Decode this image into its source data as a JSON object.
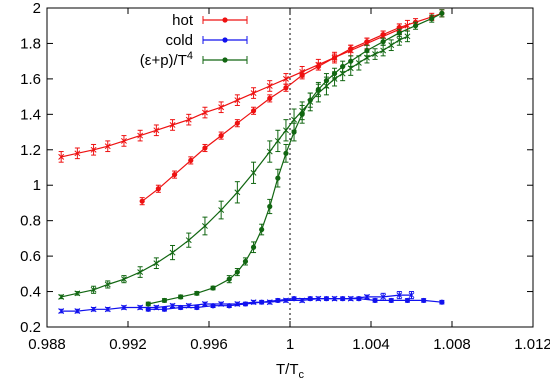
{
  "chart_data": {
    "type": "line",
    "xlabel": "T/T",
    "xlabel_subscript": "c",
    "ylabel": "",
    "xlim": [
      0.988,
      1.012
    ],
    "ylim": [
      0.2,
      2.0
    ],
    "xticks": [
      0.988,
      0.992,
      0.996,
      1.0,
      1.004,
      1.008,
      1.012
    ],
    "xtick_labels": [
      "0.988",
      "0.992",
      "0.996",
      "1",
      "1.004",
      "1.008",
      "1.012"
    ],
    "yticks": [
      0.2,
      0.4,
      0.6,
      0.8,
      1.0,
      1.2,
      1.4,
      1.6,
      1.8,
      2.0
    ],
    "ytick_labels": [
      "0.2",
      "0.4",
      "0.6",
      "0.8",
      "1",
      "1.2",
      "1.4",
      "1.6",
      "1.8",
      "2"
    ],
    "reference_line_x": 1.0,
    "legend": {
      "placement": "top-right",
      "entries": [
        {
          "label": "hot",
          "color": "#ee1111"
        },
        {
          "label": "cold",
          "color": "#1111ee"
        },
        {
          "label": "(ε+p)/T⁴",
          "label_base": "(ε+p)/T",
          "label_sup": "4",
          "color": "#116611"
        }
      ]
    },
    "series": [
      {
        "name": "hot",
        "color": "#ee1111",
        "marker": "dot",
        "x": [
          0.9927,
          0.9935,
          0.9943,
          0.9951,
          0.9958,
          0.9966,
          0.9974,
          0.9982,
          0.999,
          0.9998,
          1.0006,
          1.0014,
          1.0022,
          1.003,
          1.0038,
          1.0046,
          1.0054,
          1.0062,
          1.007,
          1.0075
        ],
        "y": [
          0.91,
          0.98,
          1.06,
          1.14,
          1.21,
          1.28,
          1.35,
          1.42,
          1.49,
          1.55,
          1.62,
          1.67,
          1.72,
          1.77,
          1.81,
          1.85,
          1.89,
          1.92,
          1.95,
          1.97
        ],
        "err": [
          0.02,
          0.02,
          0.02,
          0.02,
          0.02,
          0.02,
          0.02,
          0.02,
          0.02,
          0.02,
          0.02,
          0.02,
          0.02,
          0.02,
          0.02,
          0.02,
          0.02,
          0.02,
          0.02,
          0.02
        ]
      },
      {
        "name": "",
        "color": "#ee1111",
        "marker": "x",
        "x": [
          0.9887,
          0.9895,
          0.9903,
          0.991,
          0.9918,
          0.9926,
          0.9934,
          0.9942,
          0.995,
          0.9958,
          0.9966,
          0.9974,
          0.9982,
          0.999,
          0.9998,
          1.0006,
          1.0014,
          1.0022,
          1.003,
          1.0038,
          1.0046,
          1.0054,
          1.0058
        ],
        "y": [
          1.16,
          1.18,
          1.2,
          1.22,
          1.25,
          1.28,
          1.31,
          1.34,
          1.37,
          1.41,
          1.44,
          1.48,
          1.52,
          1.56,
          1.6,
          1.64,
          1.68,
          1.72,
          1.76,
          1.8,
          1.84,
          1.88,
          1.9
        ],
        "err": [
          0.03,
          0.03,
          0.03,
          0.03,
          0.03,
          0.03,
          0.03,
          0.03,
          0.03,
          0.03,
          0.03,
          0.03,
          0.03,
          0.03,
          0.03,
          0.03,
          0.03,
          0.03,
          0.03,
          0.03,
          0.03,
          0.03,
          0.03
        ]
      },
      {
        "name": "cold",
        "color": "#1111ee",
        "marker": "dot",
        "x": [
          0.993,
          0.9938,
          0.9946,
          0.9954,
          0.9962,
          0.997,
          0.9978,
          0.9986,
          0.9994,
          1.0002,
          1.001,
          1.0018,
          1.0026,
          1.0034,
          1.0042,
          1.005,
          1.0058,
          1.0066,
          1.0075
        ],
        "y": [
          0.3,
          0.3,
          0.31,
          0.31,
          0.32,
          0.32,
          0.33,
          0.34,
          0.35,
          0.36,
          0.36,
          0.36,
          0.36,
          0.36,
          0.35,
          0.35,
          0.35,
          0.35,
          0.34
        ],
        "err": [
          0.01,
          0.01,
          0.01,
          0.01,
          0.01,
          0.01,
          0.01,
          0.01,
          0.01,
          0.01,
          0.01,
          0.01,
          0.01,
          0.01,
          0.01,
          0.01,
          0.01,
          0.01,
          0.01
        ]
      },
      {
        "name": "",
        "color": "#1111ee",
        "marker": "x",
        "x": [
          0.9887,
          0.9895,
          0.9903,
          0.991,
          0.9918,
          0.9926,
          0.9934,
          0.9942,
          0.995,
          0.9958,
          0.9966,
          0.9974,
          0.9982,
          0.999,
          0.9998,
          1.0006,
          1.0014,
          1.0022,
          1.003,
          1.0038,
          1.0046,
          1.0054,
          1.006
        ],
        "y": [
          0.29,
          0.29,
          0.3,
          0.3,
          0.31,
          0.31,
          0.31,
          0.32,
          0.32,
          0.33,
          0.33,
          0.33,
          0.34,
          0.34,
          0.35,
          0.35,
          0.36,
          0.36,
          0.36,
          0.37,
          0.37,
          0.38,
          0.38
        ],
        "err": [
          0.01,
          0.01,
          0.01,
          0.01,
          0.01,
          0.01,
          0.01,
          0.01,
          0.01,
          0.01,
          0.01,
          0.01,
          0.01,
          0.01,
          0.01,
          0.01,
          0.01,
          0.01,
          0.01,
          0.01,
          0.02,
          0.02,
          0.02
        ]
      },
      {
        "name": "(ε+p)/T⁴",
        "color": "#116611",
        "marker": "dot",
        "x": [
          0.993,
          0.9938,
          0.9946,
          0.9954,
          0.9962,
          0.997,
          0.9974,
          0.9978,
          0.9982,
          0.9986,
          0.999,
          0.9994,
          0.9998,
          1.0002,
          1.0006,
          1.001,
          1.0014,
          1.0018,
          1.0022,
          1.0026,
          1.003,
          1.0038,
          1.0046,
          1.0054,
          1.0062,
          1.007,
          1.0075
        ],
        "y": [
          0.33,
          0.35,
          0.37,
          0.39,
          0.42,
          0.47,
          0.51,
          0.57,
          0.65,
          0.75,
          0.88,
          1.04,
          1.18,
          1.3,
          1.4,
          1.48,
          1.54,
          1.59,
          1.63,
          1.67,
          1.7,
          1.76,
          1.81,
          1.86,
          1.9,
          1.94,
          1.97
        ],
        "err": [
          0.01,
          0.01,
          0.01,
          0.01,
          0.01,
          0.02,
          0.02,
          0.02,
          0.03,
          0.03,
          0.04,
          0.05,
          0.05,
          0.05,
          0.05,
          0.04,
          0.04,
          0.04,
          0.03,
          0.03,
          0.03,
          0.03,
          0.02,
          0.02,
          0.02,
          0.02,
          0.02
        ]
      },
      {
        "name": "",
        "color": "#116611",
        "marker": "x",
        "x": [
          0.9887,
          0.9895,
          0.9903,
          0.991,
          0.9918,
          0.9926,
          0.9934,
          0.9942,
          0.995,
          0.9958,
          0.9966,
          0.9974,
          0.9982,
          0.999,
          0.9994,
          0.9998,
          1.0002,
          1.0006,
          1.001,
          1.0014,
          1.0018,
          1.0022,
          1.0026,
          1.003,
          1.0034,
          1.0038,
          1.0042,
          1.0046,
          1.005,
          1.0054,
          1.0058
        ],
        "y": [
          0.37,
          0.39,
          0.41,
          0.44,
          0.47,
          0.51,
          0.56,
          0.62,
          0.69,
          0.77,
          0.86,
          0.96,
          1.07,
          1.19,
          1.25,
          1.31,
          1.37,
          1.42,
          1.47,
          1.52,
          1.56,
          1.6,
          1.63,
          1.66,
          1.69,
          1.72,
          1.74,
          1.76,
          1.79,
          1.82,
          1.84
        ],
        "err": [
          0.01,
          0.01,
          0.02,
          0.02,
          0.02,
          0.03,
          0.03,
          0.04,
          0.04,
          0.05,
          0.05,
          0.06,
          0.06,
          0.06,
          0.06,
          0.06,
          0.06,
          0.05,
          0.05,
          0.05,
          0.05,
          0.04,
          0.04,
          0.04,
          0.04,
          0.03,
          0.03,
          0.03,
          0.03,
          0.03,
          0.03
        ]
      }
    ]
  }
}
